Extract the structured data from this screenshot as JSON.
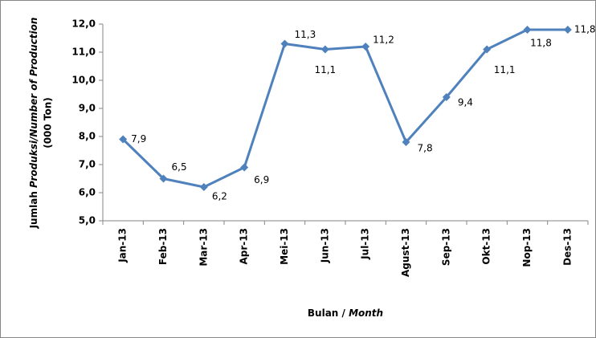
{
  "chart_data": {
    "type": "line",
    "categories": [
      "Jan-13",
      "Feb-13",
      "Mar-13",
      "Apr-13",
      "Mei-13",
      "Jun-13",
      "Jul-13",
      "Agust-13",
      "Sep-13",
      "Okt-13",
      "Nop-13",
      "Des-13"
    ],
    "series": [
      {
        "color": "#4f81bd",
        "values": [
          7.9,
          6.5,
          6.2,
          6.9,
          11.3,
          11.1,
          11.2,
          7.8,
          9.4,
          11.1,
          11.8,
          11.8
        ],
        "value_labels": [
          "7,9",
          "6,5",
          "6,2",
          "6,9",
          "11,3",
          "11,1",
          "11,2",
          "7,8",
          "9,4",
          "11,1",
          "11,8",
          "11,8"
        ]
      }
    ],
    "ylim": [
      5,
      12
    ],
    "yticks": [
      {
        "value": 5,
        "label": "5,0"
      },
      {
        "value": 6,
        "label": "6,0"
      },
      {
        "value": 7,
        "label": "7,0"
      },
      {
        "value": 8,
        "label": "8,0"
      },
      {
        "value": 9,
        "label": "9,0"
      },
      {
        "value": 10,
        "label": "10,0"
      },
      {
        "value": 11,
        "label": "11,0"
      },
      {
        "value": 12,
        "label": "12,0"
      }
    ],
    "grid": false,
    "y_label": {
      "line1": [
        {
          "text": "Jumlah ",
          "italic": false
        },
        {
          "text": "Produksi/Number of Production",
          "italic": true
        }
      ],
      "line2": "(000 Ton)"
    },
    "x_label": [
      {
        "text": "Bulan / ",
        "italic": false
      },
      {
        "text": "Month",
        "italic": true
      }
    ]
  }
}
